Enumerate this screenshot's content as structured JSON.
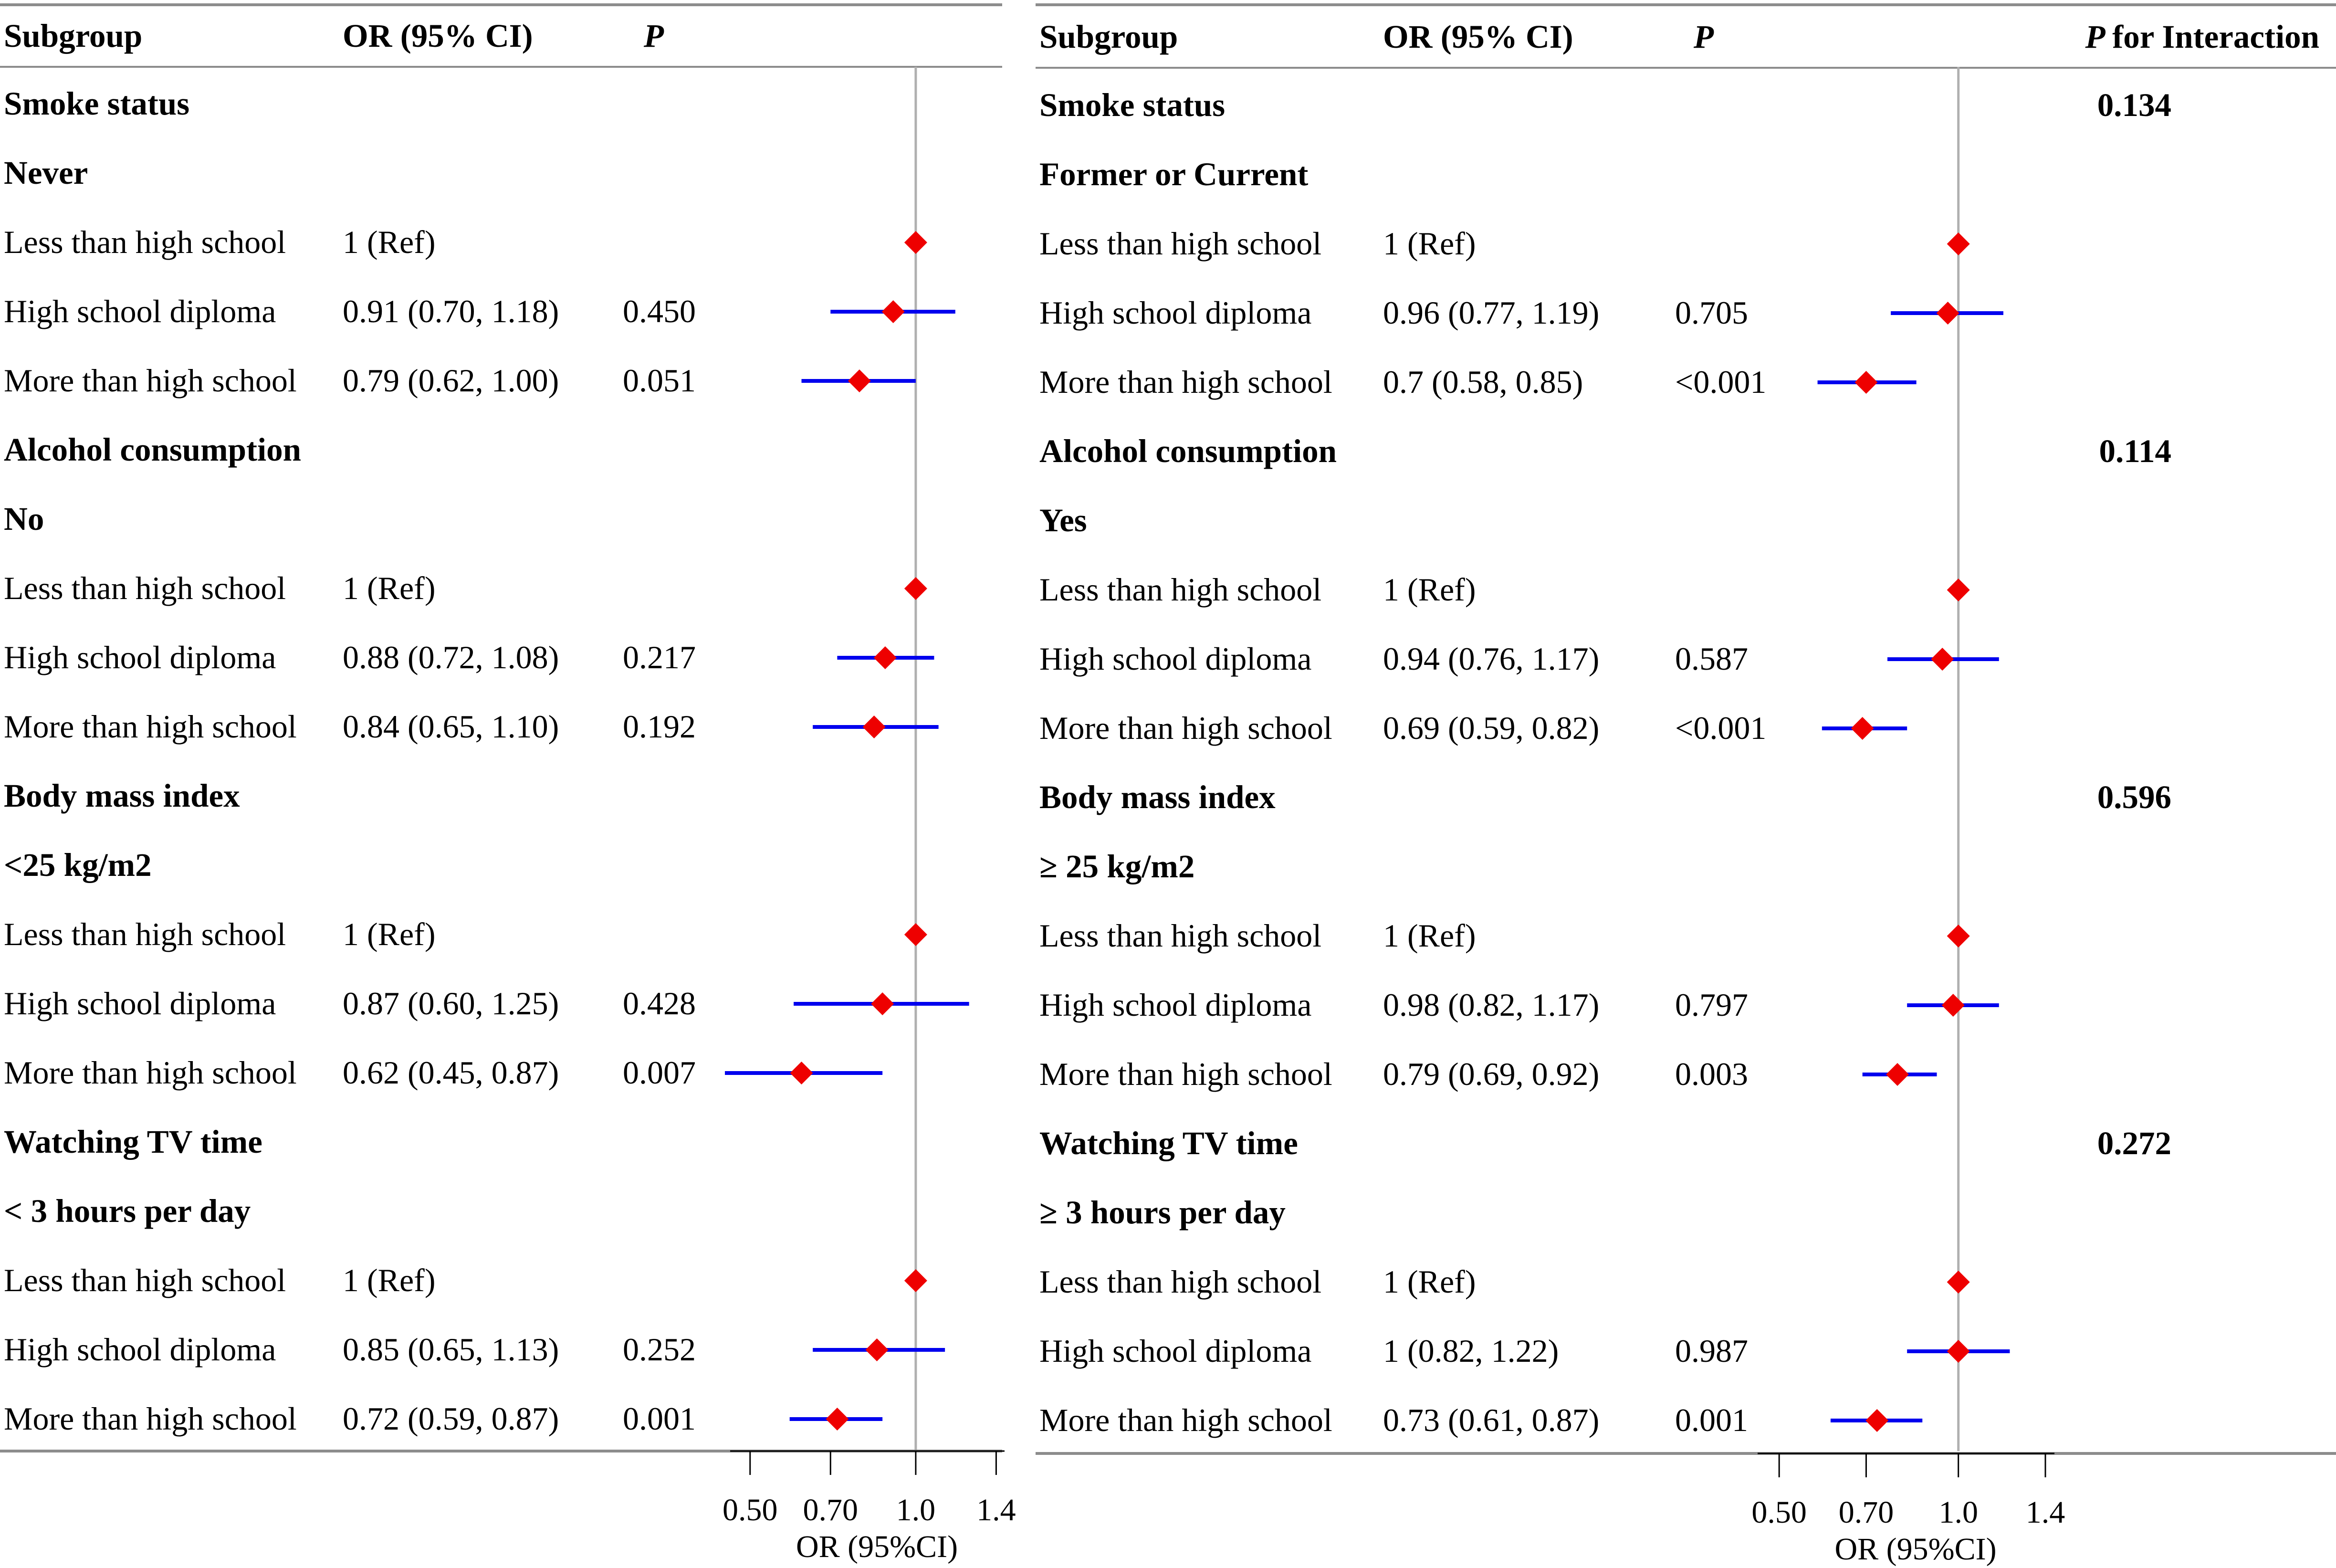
{
  "colors": {
    "ci": "#0000ee",
    "point": "#ee0000",
    "refline": "#b0b0b0",
    "rule": "#8c8c8c"
  },
  "chart_data": [
    {
      "type": "forest",
      "panel": "left",
      "columns": {
        "subgroup": "Subgroup",
        "or": "OR (95% CI)",
        "p": "P"
      },
      "xaxis": {
        "label": "OR (95%CI)",
        "ticks": [
          0.5,
          0.7,
          1.0,
          1.4
        ],
        "tick_labels": [
          "0.50",
          "0.70",
          "1.0",
          "1.4"
        ],
        "reference": 1.0
      },
      "sections": [
        {
          "title": "Smoke status",
          "group": "Never",
          "rows": [
            {
              "label": "Less than high school",
              "or_text": "1 (Ref)",
              "p": "",
              "or": 1.0,
              "lo": 1.0,
              "hi": 1.0
            },
            {
              "label": "High school diploma",
              "or_text": "0.91 (0.70, 1.18)",
              "p": "0.450",
              "or": 0.91,
              "lo": 0.7,
              "hi": 1.18
            },
            {
              "label": "More than high school",
              "or_text": "0.79 (0.62, 1.00)",
              "p": "0.051",
              "or": 0.79,
              "lo": 0.62,
              "hi": 1.0
            }
          ]
        },
        {
          "title": "Alcohol consumption",
          "group": "No",
          "rows": [
            {
              "label": "Less than high school",
              "or_text": "1 (Ref)",
              "p": "",
              "or": 1.0,
              "lo": 1.0,
              "hi": 1.0
            },
            {
              "label": "High school diploma",
              "or_text": "0.88 (0.72, 1.08)",
              "p": "0.217",
              "or": 0.88,
              "lo": 0.72,
              "hi": 1.08
            },
            {
              "label": "More than high school",
              "or_text": "0.84 (0.65, 1.10)",
              "p": "0.192",
              "or": 0.84,
              "lo": 0.65,
              "hi": 1.1
            }
          ]
        },
        {
          "title": "Body mass index",
          "group": "<25 kg/m2",
          "rows": [
            {
              "label": "Less than high school",
              "or_text": "1 (Ref)",
              "p": "",
              "or": 1.0,
              "lo": 1.0,
              "hi": 1.0
            },
            {
              "label": "High school diploma",
              "or_text": "0.87 (0.60, 1.25)",
              "p": "0.428",
              "or": 0.87,
              "lo": 0.6,
              "hi": 1.25
            },
            {
              "label": "More than high school",
              "or_text": "0.62 (0.45, 0.87)",
              "p": "0.007",
              "or": 0.62,
              "lo": 0.45,
              "hi": 0.87
            }
          ]
        },
        {
          "title": "Watching TV time",
          "group": "< 3 hours per day",
          "rows": [
            {
              "label": "Less than high school",
              "or_text": "1 (Ref)",
              "p": "",
              "or": 1.0,
              "lo": 1.0,
              "hi": 1.0
            },
            {
              "label": "High school diploma",
              "or_text": "0.85 (0.65, 1.13)",
              "p": "0.252",
              "or": 0.85,
              "lo": 0.65,
              "hi": 1.13
            },
            {
              "label": "More than high school",
              "or_text": "0.72 (0.59, 0.87)",
              "p": "0.001",
              "or": 0.72,
              "lo": 0.59,
              "hi": 0.87
            }
          ]
        }
      ]
    },
    {
      "type": "forest",
      "panel": "right",
      "columns": {
        "subgroup": "Subgroup",
        "or": "OR (95% CI)",
        "p": "P",
        "p_interaction": "for Interaction"
      },
      "xaxis": {
        "label": "OR (95%CI)",
        "ticks": [
          0.5,
          0.7,
          1.0,
          1.4
        ],
        "tick_labels": [
          "0.50",
          "0.70",
          "1.0",
          "1.4"
        ],
        "reference": 1.0
      },
      "sections": [
        {
          "title": "Smoke status",
          "p_interaction": "0.134",
          "group": "Former or Current",
          "rows": [
            {
              "label": "Less than high school",
              "or_text": "1 (Ref)",
              "p": "",
              "or": 1.0,
              "lo": 1.0,
              "hi": 1.0
            },
            {
              "label": "High school diploma",
              "or_text": "0.96 (0.77, 1.19)",
              "p": "0.705",
              "or": 0.96,
              "lo": 0.77,
              "hi": 1.19
            },
            {
              "label": "More than high school",
              "or_text": "0.7 (0.58, 0.85)",
              "p": "<0.001",
              "or": 0.7,
              "lo": 0.58,
              "hi": 0.85
            }
          ]
        },
        {
          "title": "Alcohol consumption",
          "p_interaction": "0.114",
          "group": "Yes",
          "rows": [
            {
              "label": "Less than high school",
              "or_text": "1 (Ref)",
              "p": "",
              "or": 1.0,
              "lo": 1.0,
              "hi": 1.0
            },
            {
              "label": "High school diploma",
              "or_text": "0.94 (0.76, 1.17)",
              "p": "0.587",
              "or": 0.94,
              "lo": 0.76,
              "hi": 1.17
            },
            {
              "label": "More than high school",
              "or_text": "0.69 (0.59, 0.82)",
              "p": "<0.001",
              "or": 0.69,
              "lo": 0.59,
              "hi": 0.82
            }
          ]
        },
        {
          "title": "Body mass index",
          "p_interaction": "0.596",
          "group": "≥ 25 kg/m2",
          "rows": [
            {
              "label": "Less than high school",
              "or_text": "1 (Ref)",
              "p": "",
              "or": 1.0,
              "lo": 1.0,
              "hi": 1.0
            },
            {
              "label": "High school diploma",
              "or_text": "0.98 (0.82, 1.17)",
              "p": "0.797",
              "or": 0.98,
              "lo": 0.82,
              "hi": 1.17
            },
            {
              "label": "More than high school",
              "or_text": "0.79 (0.69, 0.92)",
              "p": "0.003",
              "or": 0.79,
              "lo": 0.69,
              "hi": 0.92
            }
          ]
        },
        {
          "title": "Watching TV time",
          "p_interaction": "0.272",
          "group": "≥ 3 hours per day",
          "rows": [
            {
              "label": "Less than high school",
              "or_text": "1 (Ref)",
              "p": "",
              "or": 1.0,
              "lo": 1.0,
              "hi": 1.0
            },
            {
              "label": "High school diploma",
              "or_text": "1 (0.82, 1.22)",
              "p": "0.987",
              "or": 1.0,
              "lo": 0.82,
              "hi": 1.22
            },
            {
              "label": "More than high school",
              "or_text": "0.73 (0.61, 0.87)",
              "p": "0.001",
              "or": 0.73,
              "lo": 0.61,
              "hi": 0.87
            }
          ]
        }
      ]
    }
  ]
}
